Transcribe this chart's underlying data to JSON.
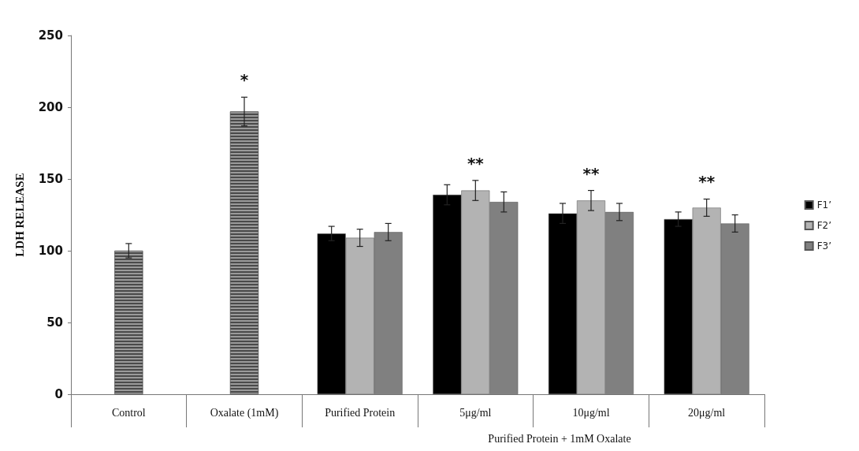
{
  "chart_data": {
    "type": "bar",
    "ylabel": "LDH RELEASE",
    "xlabel": "Purified Protein + 1mM Oxalate",
    "categories": [
      "Control",
      "Oxalate (1mM)",
      "Purified Protein",
      "5μg/ml",
      "10μg/ml",
      "20μg/ml"
    ],
    "series": [
      {
        "color": "#9a9a9a",
        "values": [
          100,
          197,
          null,
          null,
          null,
          null
        ],
        "errors": [
          5,
          10,
          null,
          null,
          null,
          null
        ]
      },
      {
        "name": "F1’",
        "color": "#000000",
        "values": [
          null,
          null,
          112,
          139,
          126,
          122
        ],
        "errors": [
          null,
          null,
          5,
          7,
          7,
          5
        ]
      },
      {
        "name": "F2’",
        "color": "#b3b3b3",
        "values": [
          null,
          null,
          109,
          142,
          135,
          130
        ],
        "errors": [
          null,
          null,
          6,
          7,
          7,
          6
        ]
      },
      {
        "name": "F3’",
        "color": "#808080",
        "values": [
          null,
          null,
          113,
          134,
          127,
          119
        ],
        "errors": [
          null,
          null,
          6,
          7,
          6,
          6
        ]
      }
    ],
    "ylim": [
      0,
      250
    ],
    "yticks": [
      0,
      50,
      100,
      150,
      200,
      250
    ],
    "legend": "right",
    "grid": false,
    "annotations": [
      "*",
      "**",
      "**",
      "**"
    ]
  }
}
